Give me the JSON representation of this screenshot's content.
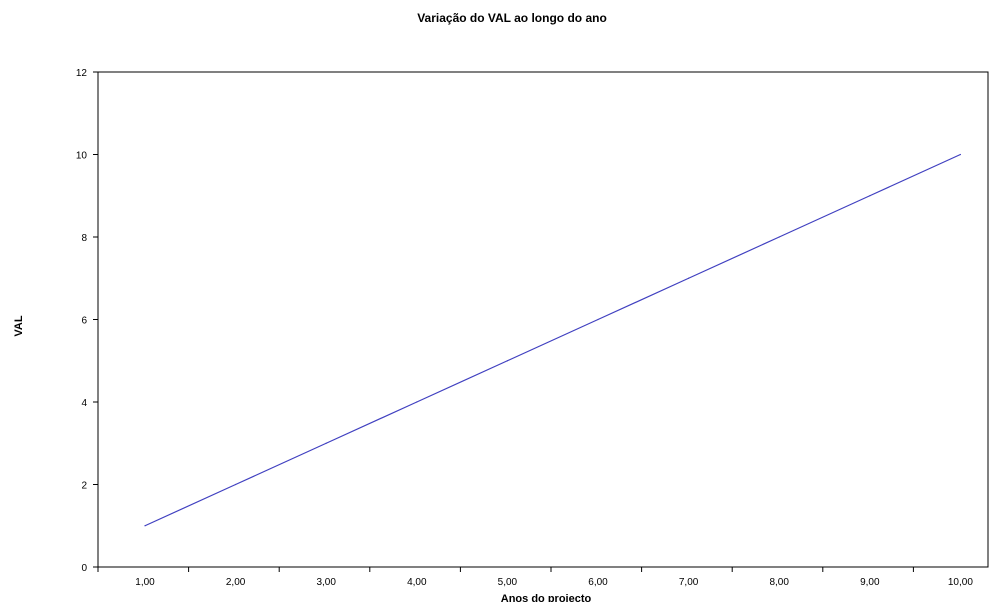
{
  "chart_data": {
    "type": "line",
    "title": "Variação do VAL ao longo do ano",
    "xlabel": "Anos do projecto",
    "ylabel": "VAL",
    "categories": [
      "1,00",
      "2,00",
      "3,00",
      "4,00",
      "5,00",
      "6,00",
      "7,00",
      "8,00",
      "9,00",
      "10,00"
    ],
    "series": [
      {
        "values": [
          1,
          2,
          3,
          4,
          5,
          6,
          7,
          8,
          9,
          10
        ],
        "color": "#4040c0"
      }
    ],
    "y_ticks": [
      "0",
      "2",
      "4",
      "6",
      "8",
      "10",
      "12"
    ],
    "ylim": [
      0,
      12
    ],
    "grid": false,
    "legend": "none"
  }
}
